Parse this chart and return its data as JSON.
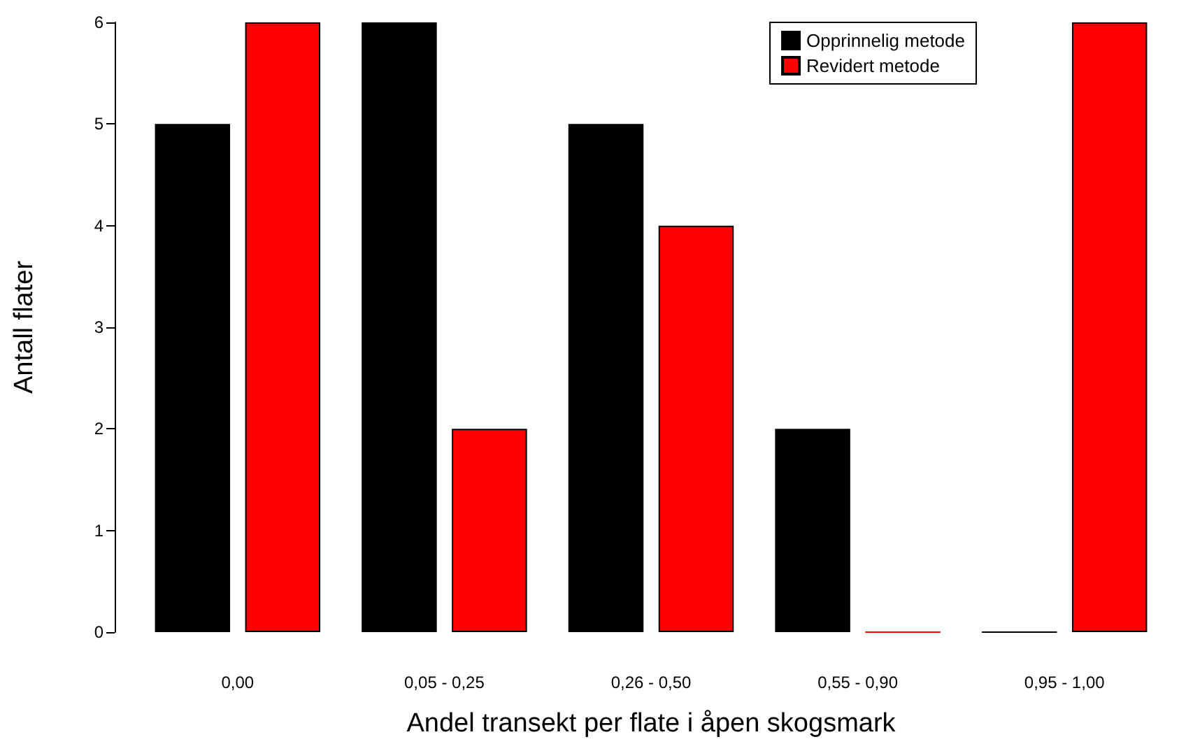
{
  "chart_data": {
    "type": "bar",
    "xlabel": "Andel transekt per flate i åpen skogsmark",
    "ylabel": "Antall flater",
    "categories": [
      "0,00",
      "0,05 - 0,25",
      "0,26 - 0,50",
      "0,55 - 0,90",
      "0,95 - 1,00"
    ],
    "series": [
      {
        "name": "Opprinnelig metode",
        "color": "#000000",
        "values": [
          5,
          6,
          5,
          2,
          0
        ]
      },
      {
        "name": "Revidert metode",
        "color": "#ff0000",
        "values": [
          6,
          2,
          4,
          0,
          6
        ]
      }
    ],
    "ylim": [
      0,
      6
    ],
    "yticks": [
      0,
      1,
      2,
      3,
      4,
      5,
      6
    ],
    "grid": false,
    "legend": "top right"
  }
}
